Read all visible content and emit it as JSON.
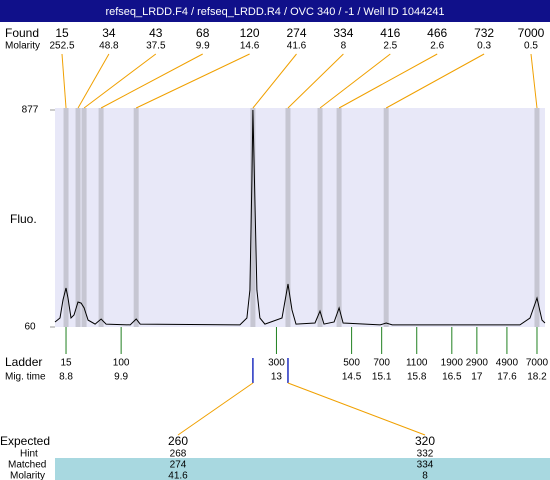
{
  "chart_data": {
    "type": "electropherogram",
    "title": "refseq_LRDD.F4 / refseq_LRDD.R4 / OVC 340 / -1 / Well ID 1044241",
    "y_label": "Fluo.",
    "ylim": [
      60,
      877
    ],
    "yticks": [
      60,
      877
    ],
    "xlim": [
      8.58,
      18.36
    ],
    "found": {
      "label": "Found",
      "molarity_label": "Molarity",
      "sizes": [
        15,
        34,
        43,
        68,
        120,
        274,
        334,
        416,
        466,
        732,
        7000
      ],
      "molarity": [
        252.5,
        48.8,
        37.5,
        9.9,
        14.6,
        41.6,
        8,
        2.5,
        2.6,
        0.3,
        0.5
      ],
      "mig_times": [
        8.8,
        9.04,
        9.16,
        9.5,
        10.2,
        12.53,
        13.23,
        13.87,
        14.25,
        15.19,
        18.2
      ],
      "color": "#f0a000"
    },
    "ladder": {
      "label": "Ladder",
      "time_label": "Mig. time",
      "sizes": [
        15,
        100,
        300,
        500,
        700,
        1100,
        1900,
        2900,
        4900,
        7000
      ],
      "mig_times": [
        8.8,
        9.9,
        13,
        14.5,
        15.1,
        15.8,
        16.5,
        17,
        17.6,
        18.2
      ],
      "color": "#208020"
    },
    "expected": {
      "label": "Expected",
      "hint_label": "Hint",
      "matched_label": "Matched",
      "molarity_label": "Molarity",
      "sizes": [
        260,
        320
      ],
      "hint": [
        268,
        332
      ],
      "matched": [
        274,
        334
      ],
      "molarity": [
        41.6,
        8
      ],
      "color": "#2030c0"
    },
    "trace": {
      "color": "#000000",
      "x": [
        8.58,
        8.68,
        8.74,
        8.8,
        8.84,
        8.9,
        8.96,
        9.04,
        9.1,
        9.16,
        9.24,
        9.38,
        9.5,
        9.6,
        10.08,
        10.2,
        10.28,
        12.27,
        12.41,
        12.47,
        12.51,
        12.53,
        12.57,
        12.61,
        12.67,
        12.77,
        13.11,
        13.23,
        13.31,
        13.39,
        13.77,
        13.87,
        13.95,
        14.15,
        14.25,
        14.33,
        15.07,
        15.19,
        15.31,
        17.86,
        18.06,
        18.2,
        18.3,
        18.36
      ],
      "y": [
        79,
        94,
        162,
        207,
        169,
        94,
        105,
        154,
        150,
        132,
        86,
        71,
        90,
        71,
        68,
        90,
        71,
        68,
        94,
        199,
        613,
        877,
        538,
        199,
        94,
        71,
        94,
        222,
        124,
        71,
        75,
        120,
        71,
        79,
        132,
        75,
        68,
        75,
        68,
        68,
        94,
        169,
        86,
        75
      ]
    }
  }
}
